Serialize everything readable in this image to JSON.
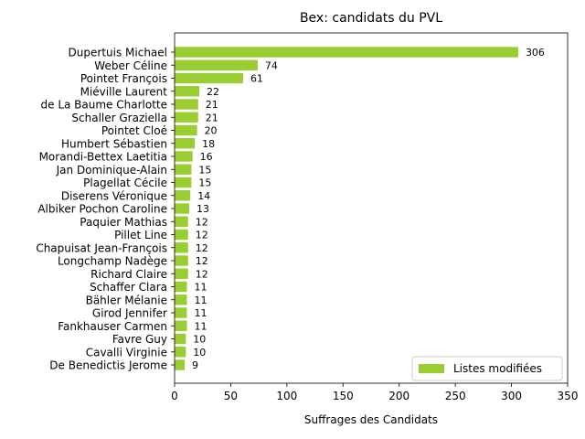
{
  "chart_data": {
    "type": "bar",
    "orientation": "horizontal",
    "title": "Bex: candidats du PVL",
    "xlabel": "Suffrages des Candidats",
    "ylabel": "",
    "xlim": [
      0,
      350
    ],
    "xticks": [
      0,
      50,
      100,
      150,
      200,
      250,
      300,
      350
    ],
    "grid": false,
    "legend_position": "lower-right",
    "categories": [
      "Dupertuis Michael",
      "Weber Céline",
      "Pointet François",
      "Miéville Laurent",
      "de La Baume Charlotte",
      "Schaller Graziella",
      "Pointet Cloé",
      "Humbert Sébastien",
      "Morandi-Bettex Laetitia",
      "Jan Dominique-Alain",
      "Plagellat Cécile",
      "Diserens Véronique",
      "Albiker Pochon Caroline",
      "Paquier Mathias",
      "Pillet Line",
      "Chapuisat Jean-François",
      "Longchamp Nadège",
      "Richard Claire",
      "Schaffer Clara",
      "Bähler Mélanie",
      "Girod Jennifer",
      "Fankhauser Carmen",
      "Favre Guy",
      "Cavalli Virginie",
      "De Benedictis Jerome"
    ],
    "series": [
      {
        "name": "Listes modifiées",
        "color": "#9acd32",
        "values": [
          306,
          74,
          61,
          22,
          21,
          21,
          20,
          18,
          16,
          15,
          15,
          14,
          13,
          12,
          12,
          12,
          12,
          12,
          11,
          11,
          11,
          11,
          10,
          10,
          9
        ]
      }
    ]
  }
}
